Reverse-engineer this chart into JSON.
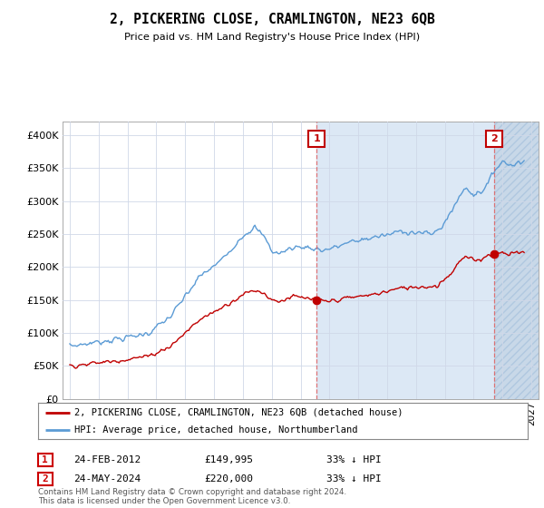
{
  "title": "2, PICKERING CLOSE, CRAMLINGTON, NE23 6QB",
  "subtitle": "Price paid vs. HM Land Registry's House Price Index (HPI)",
  "legend_line1": "2, PICKERING CLOSE, CRAMLINGTON, NE23 6QB (detached house)",
  "legend_line2": "HPI: Average price, detached house, Northumberland",
  "transaction1_date": "24-FEB-2012",
  "transaction1_price": "£149,995",
  "transaction1_hpi": "33% ↓ HPI",
  "transaction2_date": "24-MAY-2024",
  "transaction2_price": "£220,000",
  "transaction2_hpi": "33% ↓ HPI",
  "footer": "Contains HM Land Registry data © Crown copyright and database right 2024.\nThis data is licensed under the Open Government Licence v3.0.",
  "hpi_color": "#5b9bd5",
  "price_color": "#c00000",
  "dashed_color": "#e06060",
  "background_color": "#ffffff",
  "grid_color": "#d0d8e8",
  "shade_color": "#dce8f5",
  "hatch_color": "#c8d8e8",
  "ylim": [
    0,
    420000
  ],
  "yticks": [
    0,
    50000,
    100000,
    150000,
    200000,
    250000,
    300000,
    350000,
    400000
  ],
  "xlim_start": 1994.5,
  "xlim_end": 2027.5,
  "t1_x": 2012.125,
  "t2_x": 2024.417,
  "t1_y": 149995,
  "t2_y": 220000,
  "hpi_anchors": [
    [
      1995.0,
      80000
    ],
    [
      1996.0,
      83000
    ],
    [
      1997.5,
      88000
    ],
    [
      1999.0,
      93000
    ],
    [
      2000.5,
      100000
    ],
    [
      2002.0,
      125000
    ],
    [
      2003.0,
      155000
    ],
    [
      2004.0,
      185000
    ],
    [
      2005.5,
      210000
    ],
    [
      2007.0,
      248000
    ],
    [
      2007.8,
      260000
    ],
    [
      2008.5,
      245000
    ],
    [
      2009.0,
      225000
    ],
    [
      2009.5,
      220000
    ],
    [
      2010.5,
      230000
    ],
    [
      2011.5,
      230000
    ],
    [
      2012.0,
      228000
    ],
    [
      2012.5,
      225000
    ],
    [
      2013.0,
      228000
    ],
    [
      2013.5,
      230000
    ],
    [
      2014.0,
      235000
    ],
    [
      2015.0,
      240000
    ],
    [
      2016.0,
      245000
    ],
    [
      2017.0,
      248000
    ],
    [
      2018.0,
      255000
    ],
    [
      2019.0,
      252000
    ],
    [
      2020.0,
      250000
    ],
    [
      2020.5,
      255000
    ],
    [
      2021.0,
      268000
    ],
    [
      2021.5,
      285000
    ],
    [
      2022.0,
      308000
    ],
    [
      2022.5,
      320000
    ],
    [
      2023.0,
      310000
    ],
    [
      2023.5,
      315000
    ],
    [
      2024.0,
      325000
    ],
    [
      2024.5,
      350000
    ],
    [
      2025.0,
      360000
    ],
    [
      2025.5,
      355000
    ],
    [
      2026.0,
      358000
    ],
    [
      2026.5,
      360000
    ]
  ],
  "price_anchors": [
    [
      1995.0,
      50000
    ],
    [
      1996.0,
      52000
    ],
    [
      1997.5,
      56000
    ],
    [
      1999.0,
      60000
    ],
    [
      2000.5,
      65000
    ],
    [
      2002.0,
      80000
    ],
    [
      2003.0,
      100000
    ],
    [
      2004.0,
      120000
    ],
    [
      2005.5,
      138000
    ],
    [
      2007.0,
      158000
    ],
    [
      2007.8,
      165000
    ],
    [
      2008.5,
      160000
    ],
    [
      2009.0,
      150000
    ],
    [
      2009.5,
      148000
    ],
    [
      2010.5,
      155000
    ],
    [
      2011.5,
      152000
    ],
    [
      2012.125,
      149995
    ],
    [
      2012.5,
      148000
    ],
    [
      2013.0,
      148000
    ],
    [
      2013.5,
      150000
    ],
    [
      2014.0,
      152000
    ],
    [
      2015.0,
      155000
    ],
    [
      2016.0,
      158000
    ],
    [
      2017.0,
      163000
    ],
    [
      2018.0,
      168000
    ],
    [
      2019.0,
      170000
    ],
    [
      2020.0,
      170000
    ],
    [
      2020.5,
      172000
    ],
    [
      2021.0,
      182000
    ],
    [
      2021.5,
      192000
    ],
    [
      2022.0,
      208000
    ],
    [
      2022.5,
      215000
    ],
    [
      2023.0,
      210000
    ],
    [
      2023.5,
      212000
    ],
    [
      2024.0,
      218000
    ],
    [
      2024.417,
      220000
    ],
    [
      2025.0,
      222000
    ],
    [
      2025.5,
      220000
    ],
    [
      2026.0,
      222000
    ],
    [
      2026.5,
      223000
    ]
  ]
}
